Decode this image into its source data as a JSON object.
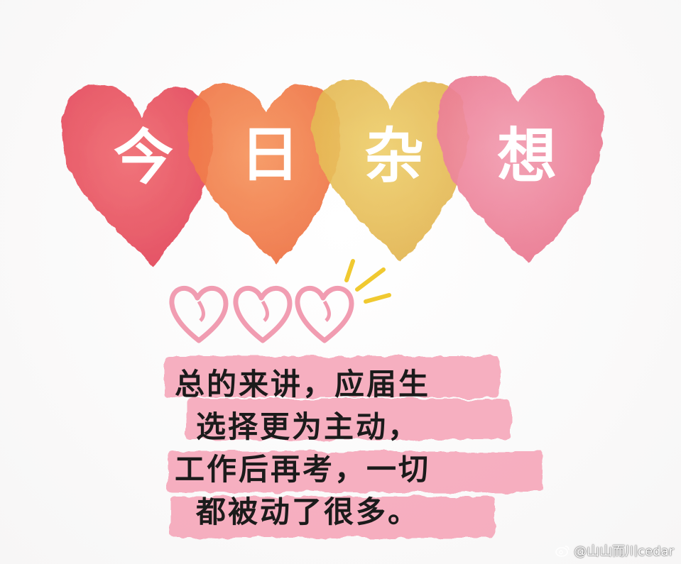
{
  "title": {
    "chars": [
      "今",
      "日",
      "杂",
      "想"
    ]
  },
  "body": {
    "lines": [
      "总的来讲，应届生",
      "选择更为主动，",
      "工作后再考，一切",
      "都被动了很多。"
    ]
  },
  "watermark": {
    "icon": "weibo-icon",
    "text": "@山山而川cedar"
  },
  "colors": {
    "heart_red": "#ec5a63",
    "heart_orange": "#f2824b",
    "heart_yellow": "#e9c25a",
    "heart_pink": "#ee8aa0",
    "small_heart": "#ef8ca4",
    "highlight": "#f59ab0",
    "sparkle": "#f0c930"
  }
}
